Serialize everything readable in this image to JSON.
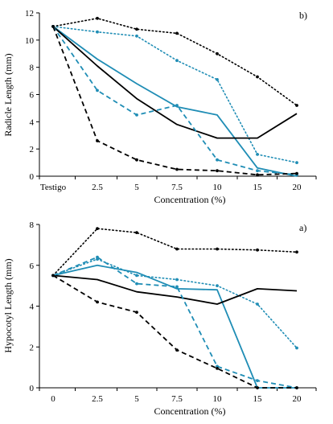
{
  "chart_data": [
    {
      "panel_label": "b)",
      "type": "line",
      "xlabel": "Concentration (%)",
      "ylabel": "Radicle Length (mm)",
      "categories": [
        "Testigo",
        "2.5",
        "5",
        "7.5",
        "10",
        "15",
        "20"
      ],
      "ylim": [
        0,
        12
      ],
      "yticks": [
        0,
        2,
        4,
        6,
        8,
        10,
        12
      ],
      "grid": false,
      "legend": "none",
      "series": [
        {
          "style": "dotted",
          "color": "#000000",
          "marker": "dot",
          "values": [
            11.0,
            11.6,
            10.8,
            10.5,
            9.0,
            7.3,
            5.2
          ]
        },
        {
          "style": "dotted",
          "color": "#1f8db5",
          "marker": "dot",
          "values": [
            11.0,
            10.6,
            10.3,
            8.5,
            7.1,
            1.6,
            1.0
          ]
        },
        {
          "style": "solid",
          "color": "#1f8db5",
          "marker": "none",
          "values": [
            11.0,
            8.6,
            6.8,
            5.1,
            4.5,
            0.6,
            0.0
          ]
        },
        {
          "style": "solid",
          "color": "#000000",
          "marker": "none",
          "values": [
            11.0,
            8.1,
            5.7,
            3.8,
            2.8,
            2.8,
            4.6
          ]
        },
        {
          "style": "dashed",
          "color": "#1f8db5",
          "marker": "dot",
          "values": [
            11.0,
            6.3,
            4.5,
            5.2,
            1.2,
            0.4,
            0.1
          ]
        },
        {
          "style": "dashed",
          "color": "#000000",
          "marker": "dot",
          "values": [
            11.0,
            2.6,
            1.2,
            0.5,
            0.4,
            0.1,
            0.2
          ]
        }
      ]
    },
    {
      "panel_label": "a)",
      "type": "line",
      "xlabel": "Concentration (%)",
      "ylabel": "Hypocotyl Length (mm)",
      "categories": [
        "0",
        "2.5",
        "5",
        "7.5",
        "10",
        "15",
        "20"
      ],
      "ylim": [
        0,
        8
      ],
      "yticks": [
        0,
        2,
        4,
        6,
        8
      ],
      "grid": false,
      "legend": "none",
      "series": [
        {
          "style": "dotted",
          "color": "#000000",
          "marker": "dot",
          "values": [
            5.5,
            7.8,
            7.6,
            6.8,
            6.8,
            6.75,
            6.65
          ]
        },
        {
          "style": "dotted",
          "color": "#1f8db5",
          "marker": "dot",
          "values": [
            5.5,
            6.3,
            5.5,
            5.3,
            5.0,
            4.1,
            1.95
          ]
        },
        {
          "style": "solid",
          "color": "#1f8db5",
          "marker": "none",
          "values": [
            5.5,
            6.0,
            5.65,
            4.85,
            4.8,
            0.0,
            0.0
          ]
        },
        {
          "style": "solid",
          "color": "#000000",
          "marker": "none",
          "values": [
            5.5,
            5.3,
            4.7,
            4.45,
            4.1,
            4.85,
            4.75
          ]
        },
        {
          "style": "dashed",
          "color": "#1f8db5",
          "marker": "dot",
          "values": [
            5.5,
            6.4,
            5.1,
            4.95,
            1.05,
            0.35,
            0.0
          ]
        },
        {
          "style": "dashed",
          "color": "#000000",
          "marker": "dot",
          "values": [
            5.5,
            4.2,
            3.7,
            1.85,
            0.95,
            0.0,
            0.0
          ]
        }
      ]
    }
  ]
}
